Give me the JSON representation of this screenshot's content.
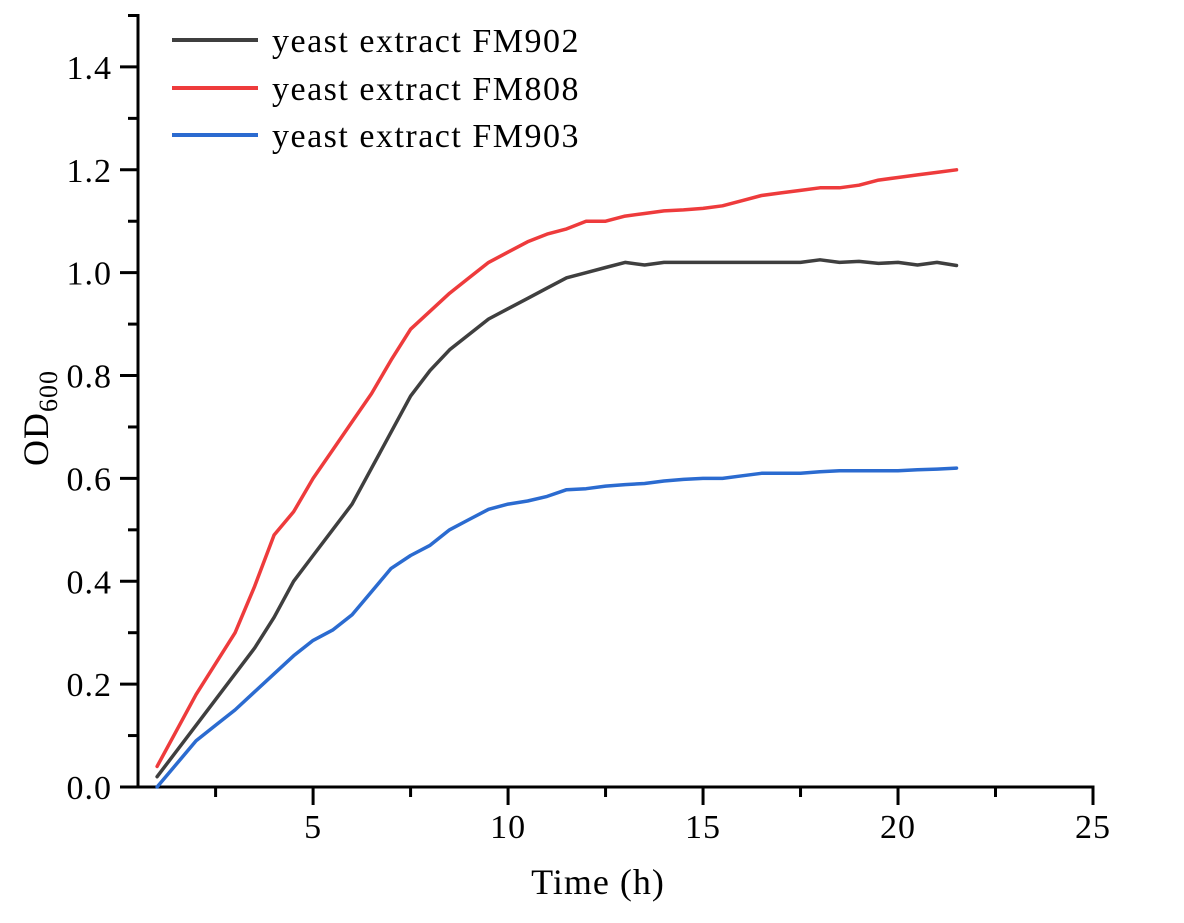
{
  "chart_data": {
    "type": "line",
    "title": "",
    "xlabel": "Time (h)",
    "ylabel_main": "OD",
    "ylabel_sub": "600",
    "xlim": [
      0.51,
      25
    ],
    "ylim": [
      0,
      1.5
    ],
    "grid": false,
    "legend_position": "upper-left",
    "x_major_ticks": [
      5,
      10,
      15,
      20,
      25
    ],
    "x_major_labels": [
      "5",
      "10",
      "15",
      "20",
      "25"
    ],
    "x_minor_ticks": [
      2.5,
      7.5,
      12.5,
      17.5,
      22.5
    ],
    "y_major_ticks": [
      0.0,
      0.2,
      0.4,
      0.6,
      0.8,
      1.0,
      1.2,
      1.4
    ],
    "y_major_labels": [
      "0.0",
      "0.2",
      "0.4",
      "0.6",
      "0.8",
      "1.0",
      "1.2",
      "1.4"
    ],
    "y_minor_ticks": [
      0.1,
      0.3,
      0.5,
      0.7,
      0.9,
      1.1,
      1.3,
      1.5
    ],
    "x": [
      1,
      1.5,
      2,
      2.5,
      3,
      3.5,
      4,
      4.5,
      5,
      5.5,
      6,
      6.5,
      7,
      7.5,
      8,
      8.5,
      9,
      9.5,
      10,
      10.5,
      11,
      11.5,
      12,
      12.5,
      13,
      13.5,
      14,
      14.5,
      15,
      15.5,
      16,
      16.5,
      17,
      17.5,
      18,
      18.5,
      19,
      19.5,
      20,
      20.5,
      21,
      21.5
    ],
    "series": [
      {
        "name": "yeast extract FM902",
        "color": "#3f3f3f",
        "values": [
          0.02,
          0.07,
          0.12,
          0.17,
          0.22,
          0.27,
          0.33,
          0.4,
          0.45,
          0.5,
          0.55,
          0.62,
          0.69,
          0.76,
          0.81,
          0.85,
          0.88,
          0.91,
          0.93,
          0.95,
          0.97,
          0.99,
          1.0,
          1.01,
          1.02,
          1.015,
          1.02,
          1.02,
          1.02,
          1.02,
          1.02,
          1.02,
          1.02,
          1.02,
          1.025,
          1.02,
          1.022,
          1.018,
          1.02,
          1.015,
          1.02,
          1.014
        ]
      },
      {
        "name": "yeast extract FM808",
        "color": "#ee3b3c",
        "values": [
          0.04,
          0.11,
          0.18,
          0.24,
          0.3,
          0.39,
          0.49,
          0.535,
          0.6,
          0.655,
          0.71,
          0.765,
          0.83,
          0.89,
          0.925,
          0.96,
          0.99,
          1.02,
          1.04,
          1.06,
          1.075,
          1.085,
          1.1,
          1.1,
          1.11,
          1.115,
          1.12,
          1.122,
          1.125,
          1.13,
          1.14,
          1.15,
          1.155,
          1.16,
          1.165,
          1.165,
          1.17,
          1.18,
          1.185,
          1.19,
          1.195,
          1.2
        ]
      },
      {
        "name": "yeast extract FM903",
        "color": "#2b6bd0",
        "values": [
          0.0,
          0.045,
          0.09,
          0.12,
          0.15,
          0.185,
          0.22,
          0.255,
          0.285,
          0.305,
          0.335,
          0.38,
          0.425,
          0.45,
          0.47,
          0.5,
          0.52,
          0.54,
          0.55,
          0.556,
          0.565,
          0.578,
          0.58,
          0.585,
          0.588,
          0.59,
          0.595,
          0.598,
          0.6,
          0.6,
          0.605,
          0.61,
          0.61,
          0.61,
          0.613,
          0.615,
          0.615,
          0.615,
          0.615,
          0.617,
          0.618,
          0.62
        ]
      }
    ]
  },
  "style": {
    "axis_color": "#000000",
    "background": "#ffffff",
    "line_width": 3.5
  }
}
